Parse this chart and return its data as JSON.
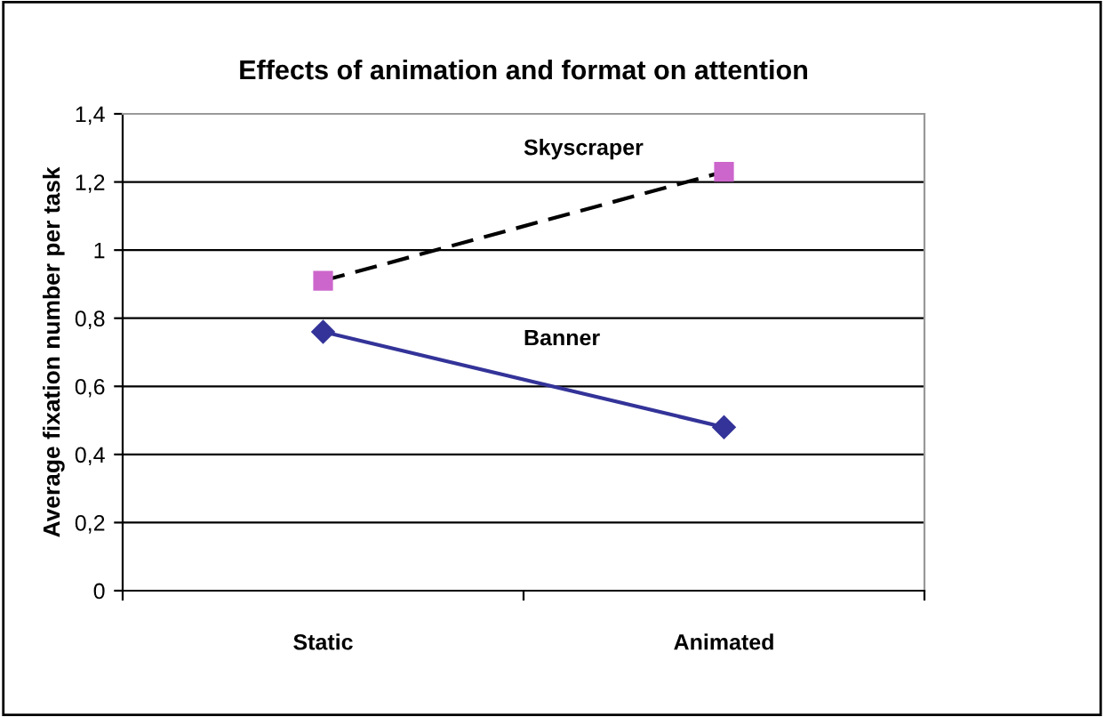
{
  "chart_data": {
    "type": "line",
    "title": "Effects of animation and format on attention",
    "ylabel": "Average fixation number per task",
    "categories": [
      "Static",
      "Animated"
    ],
    "series": [
      {
        "name": "Skyscraper",
        "color": "#cc66cc",
        "values": [
          0.91,
          1.23
        ],
        "marker": "square",
        "line_style": "dashed"
      },
      {
        "name": "Banner",
        "color": "#333399",
        "values": [
          0.76,
          0.48
        ],
        "marker": "diamond",
        "line_style": "solid"
      }
    ],
    "ylim": [
      0,
      1.4
    ],
    "yticks": [
      0,
      {
        "value": 0.2,
        "label": "0,2"
      },
      {
        "value": 0.4,
        "label": "0,4"
      },
      {
        "value": 0.6,
        "label": "0,6"
      },
      {
        "value": 0.8,
        "label": "0,8"
      },
      1,
      {
        "value": 1.2,
        "label": "1,2"
      },
      {
        "value": 1.4,
        "label": "1,4"
      }
    ],
    "grid": "y",
    "legend": false
  }
}
